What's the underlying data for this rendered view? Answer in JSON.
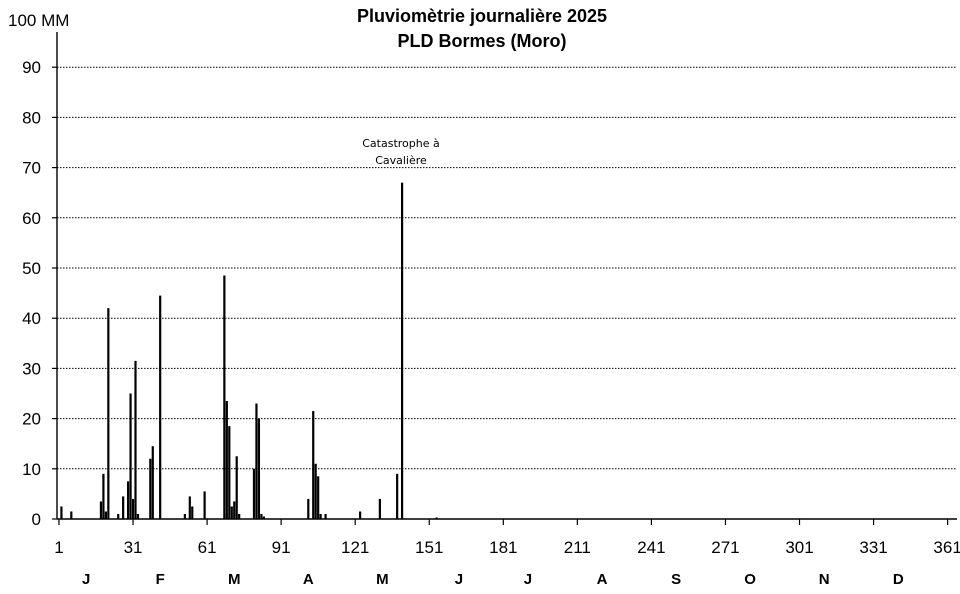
{
  "chart_data": {
    "type": "bar",
    "title_lines": [
      "Pluviomètrie journalière 2025",
      "PLD Bormes (Moro)"
    ],
    "ylabel": "MM",
    "y_unit_label": "100 MM",
    "ylim": [
      0,
      100
    ],
    "y_ticks": [
      "0",
      "10",
      "20",
      "30",
      "40",
      "50",
      "60",
      "70",
      "80",
      "90"
    ],
    "xlim": [
      1,
      365
    ],
    "x_ticks": [
      1,
      31,
      61,
      91,
      121,
      151,
      181,
      211,
      241,
      271,
      301,
      331,
      361
    ],
    "x_tick_labels": [
      "1",
      "31",
      "61",
      "91",
      "121",
      "151",
      "181",
      "211",
      "241",
      "271",
      "301",
      "331",
      "361"
    ],
    "months": [
      {
        "label": "J",
        "day": 12
      },
      {
        "label": "F",
        "day": 42
      },
      {
        "label": "M",
        "day": 72
      },
      {
        "label": "A",
        "day": 102
      },
      {
        "label": "M",
        "day": 132
      },
      {
        "label": "J",
        "day": 163
      },
      {
        "label": "J",
        "day": 191
      },
      {
        "label": "A",
        "day": 221
      },
      {
        "label": "S",
        "day": 251
      },
      {
        "label": "O",
        "day": 281
      },
      {
        "label": "N",
        "day": 311
      },
      {
        "label": "D",
        "day": 341
      }
    ],
    "grid": true,
    "legend": "none",
    "series": [
      {
        "x": [
          2,
          6,
          18,
          19,
          20,
          21,
          25,
          27,
          29,
          30,
          31,
          32,
          33,
          38,
          39,
          42,
          52,
          54,
          55,
          60,
          68,
          69,
          70,
          71,
          72,
          73,
          74,
          80,
          81,
          82,
          83,
          84,
          102,
          104,
          105,
          106,
          107,
          109,
          123,
          131,
          138,
          140,
          154
        ],
        "values": [
          2.5,
          1.5,
          3.5,
          9.0,
          1.5,
          42.0,
          1.0,
          4.5,
          7.5,
          25.0,
          4.0,
          31.5,
          1.0,
          12.0,
          14.5,
          44.5,
          1.0,
          4.5,
          2.5,
          5.5,
          48.5,
          23.5,
          18.5,
          2.5,
          3.5,
          12.5,
          1.0,
          10.0,
          23.0,
          20.0,
          1.0,
          0.5,
          4.0,
          21.5,
          11.0,
          8.5,
          1.0,
          1.0,
          1.5,
          4.0,
          9.0,
          67.0,
          0.3
        ]
      }
    ],
    "annotations": [
      {
        "lines": [
          "Catastrophe à",
          "Cavalière"
        ],
        "day": 140,
        "value": 67
      }
    ]
  }
}
